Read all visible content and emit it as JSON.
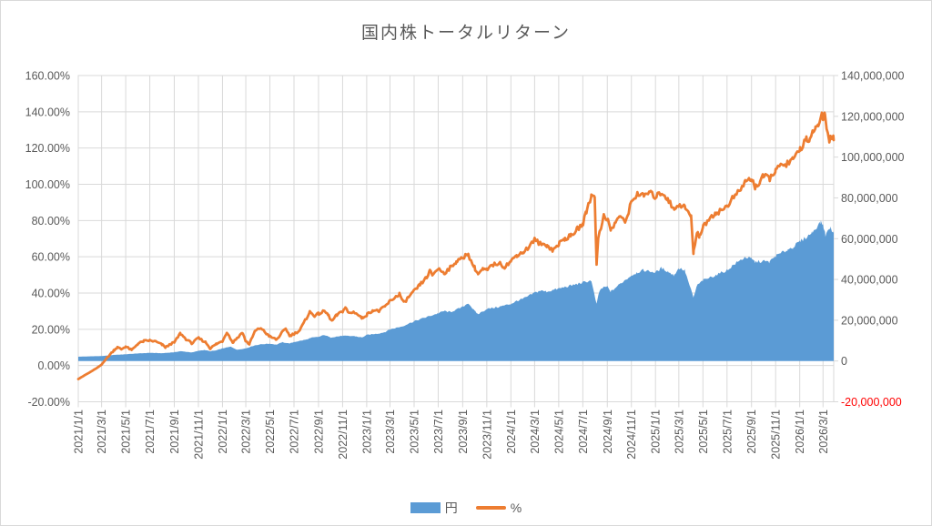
{
  "title": "国内株トータルリターン",
  "legend": {
    "items": [
      {
        "label": "円",
        "marker": "area-swatch"
      },
      {
        "label": "%",
        "marker": "line-swatch"
      }
    ]
  },
  "colors": {
    "area_series": "#5B9BD5",
    "line_series": "#ED7D31",
    "grid": "#D9D9D9",
    "axis_text": "#595959",
    "negative_axis_text": "#FF0000",
    "title_text": "#595959"
  },
  "chart_data": {
    "type": "combo",
    "title": "国内株トータルリターン",
    "grid": {
      "horizontal": true,
      "vertical": true
    },
    "legend_position": "bottom",
    "x_axis": {
      "min": "2021/1/1",
      "max": "2026/3/28",
      "tick_interval": "2 months",
      "tick_labels": [
        "2021/1/1",
        "2021/3/1",
        "2021/5/1",
        "2021/7/1",
        "2021/9/1",
        "2021/11/1",
        "2022/1/1",
        "2022/3/1",
        "2022/5/1",
        "2022/7/1",
        "2022/9/1",
        "2022/11/1",
        "2023/1/1",
        "2023/3/1",
        "2023/5/1",
        "2023/7/1",
        "2023/9/1",
        "2023/11/1",
        "2024/1/1",
        "2024/3/1",
        "2024/5/1",
        "2024/7/1",
        "2024/9/1",
        "2024/11/1",
        "2025/1/1",
        "2025/3/1",
        "2025/5/1",
        "2025/7/1",
        "2025/9/1",
        "2025/11/1",
        "2026/1/1",
        "2026/3/1"
      ]
    },
    "y_left": {
      "unit": "%",
      "min": -20,
      "max": 160,
      "step": 20,
      "tick_labels": [
        "160.00%",
        "140.00%",
        "120.00%",
        "100.00%",
        "80.00%",
        "60.00%",
        "40.00%",
        "20.00%",
        "0.00%",
        "-20.00%"
      ]
    },
    "y_right": {
      "unit": "円",
      "min": -20000000,
      "max": 140000000,
      "step": 20000000,
      "tick_labels": [
        "140,000,000",
        "120,000,000",
        "100,000,000",
        "80,000,000",
        "60,000,000",
        "40,000,000",
        "20,000,000",
        "0",
        "-20,000,000"
      ],
      "negative_label_red": true
    },
    "series": [
      {
        "name": "円",
        "type": "area",
        "axis": "right",
        "seed": 1,
        "points": [
          [
            "2021/1/1",
            2100000
          ],
          [
            "2021/2/1",
            2300000
          ],
          [
            "2021/3/1",
            2400000
          ],
          [
            "2021/4/1",
            3000000
          ],
          [
            "2021/5/1",
            3300000
          ],
          [
            "2021/6/1",
            3700000
          ],
          [
            "2021/7/1",
            4000000
          ],
          [
            "2021/8/1",
            3800000
          ],
          [
            "2021/9/1",
            4300000
          ],
          [
            "2021/9/16",
            4800000
          ],
          [
            "2021/10/1",
            4500000
          ],
          [
            "2021/10/16",
            4200000
          ],
          [
            "2021/11/1",
            5000000
          ],
          [
            "2021/11/16",
            5400000
          ],
          [
            "2021/12/1",
            4800000
          ],
          [
            "2021/12/16",
            5200000
          ],
          [
            "2022/1/1",
            6200000
          ],
          [
            "2022/1/22",
            7000000
          ],
          [
            "2022/2/7",
            5500000
          ],
          [
            "2022/3/1",
            6200000
          ],
          [
            "2022/3/24",
            7700000
          ],
          [
            "2022/4/8",
            8200000
          ],
          [
            "2022/5/1",
            8500000
          ],
          [
            "2022/5/18",
            8000000
          ],
          [
            "2022/6/1",
            9200000
          ],
          [
            "2022/6/20",
            8600000
          ],
          [
            "2022/7/1",
            9300000
          ],
          [
            "2022/8/1",
            10500000
          ],
          [
            "2022/8/16",
            11500000
          ],
          [
            "2022/9/1",
            11800000
          ],
          [
            "2022/9/16",
            12800000
          ],
          [
            "2022/10/1",
            11500000
          ],
          [
            "2022/10/16",
            12000000
          ],
          [
            "2022/11/1",
            12300000
          ],
          [
            "2022/12/1",
            12200000
          ],
          [
            "2022/12/20",
            11500000
          ],
          [
            "2023/1/1",
            12800000
          ],
          [
            "2023/2/1",
            13500000
          ],
          [
            "2023/2/16",
            14200000
          ],
          [
            "2023/3/1",
            15500000
          ],
          [
            "2023/4/1",
            17000000
          ],
          [
            "2023/5/1",
            19500000
          ],
          [
            "2023/6/1",
            21500000
          ],
          [
            "2023/7/1",
            23400000
          ],
          [
            "2023/7/16",
            24500000
          ],
          [
            "2023/8/1",
            24000000
          ],
          [
            "2023/9/1",
            26500000
          ],
          [
            "2023/9/15",
            28500000
          ],
          [
            "2023/10/1",
            24500000
          ],
          [
            "2023/10/10",
            23000000
          ],
          [
            "2023/11/1",
            25500000
          ],
          [
            "2023/12/1",
            26500000
          ],
          [
            "2024/1/1",
            28000000
          ],
          [
            "2024/1/16",
            29500000
          ],
          [
            "2024/2/1",
            30500000
          ],
          [
            "2024/3/1",
            33500000
          ],
          [
            "2024/3/16",
            34500000
          ],
          [
            "2024/4/1",
            34000000
          ],
          [
            "2024/5/1",
            35500000
          ],
          [
            "2024/6/1",
            37000000
          ],
          [
            "2024/7/1",
            38500000
          ],
          [
            "2024/7/22",
            39500000
          ],
          [
            "2024/8/5",
            27800000
          ],
          [
            "2024/8/10",
            33000000
          ],
          [
            "2024/8/16",
            35500000
          ],
          [
            "2024/9/1",
            36500000
          ],
          [
            "2024/9/10",
            34000000
          ],
          [
            "2024/10/1",
            37500000
          ],
          [
            "2024/11/1",
            42000000
          ],
          [
            "2024/11/16",
            43500000
          ],
          [
            "2024/12/1",
            44500000
          ],
          [
            "2025/1/1",
            43500000
          ],
          [
            "2025/1/16",
            45500000
          ],
          [
            "2025/2/1",
            44000000
          ],
          [
            "2025/2/16",
            42000000
          ],
          [
            "2025/3/1",
            45500000
          ],
          [
            "2025/3/16",
            44500000
          ],
          [
            "2025/4/7",
            31000000
          ],
          [
            "2025/4/16",
            37000000
          ],
          [
            "2025/5/1",
            39500000
          ],
          [
            "2025/6/1",
            42000000
          ],
          [
            "2025/7/1",
            44500000
          ],
          [
            "2025/7/16",
            47000000
          ],
          [
            "2025/8/1",
            49000000
          ],
          [
            "2025/8/16",
            51000000
          ],
          [
            "2025/9/1",
            50000000
          ],
          [
            "2025/9/10",
            48500000
          ],
          [
            "2025/10/1",
            49000000
          ],
          [
            "2025/10/16",
            48500000
          ],
          [
            "2025/11/1",
            51500000
          ],
          [
            "2025/12/1",
            54500000
          ],
          [
            "2025/12/16",
            56000000
          ],
          [
            "2026/1/1",
            58500000
          ],
          [
            "2026/1/16",
            60500000
          ],
          [
            "2026/2/1",
            63000000
          ],
          [
            "2026/2/22",
            68000000
          ],
          [
            "2026/3/1",
            67000000
          ],
          [
            "2026/3/7",
            61800000
          ],
          [
            "2026/3/13",
            63500000
          ],
          [
            "2026/3/19",
            65500000
          ],
          [
            "2026/3/28",
            63000000
          ]
        ]
      },
      {
        "name": "%",
        "type": "line",
        "axis": "left",
        "seed": 2,
        "points": [
          [
            "2021/1/1",
            -7.5
          ],
          [
            "2021/1/16",
            -5.5
          ],
          [
            "2021/2/1",
            -3.5
          ],
          [
            "2021/2/16",
            -1.5
          ],
          [
            "2021/3/1",
            0.5
          ],
          [
            "2021/3/16",
            4.5
          ],
          [
            "2021/4/1",
            8.5
          ],
          [
            "2021/4/10",
            10
          ],
          [
            "2021/4/20",
            9
          ],
          [
            "2021/5/1",
            10.5
          ],
          [
            "2021/5/16",
            8.5
          ],
          [
            "2021/6/1",
            12
          ],
          [
            "2021/6/16",
            13.5
          ],
          [
            "2021/7/1",
            13.8
          ],
          [
            "2021/7/16",
            13.2
          ],
          [
            "2021/8/1",
            11.5
          ],
          [
            "2021/8/10",
            10
          ],
          [
            "2021/8/24",
            12
          ],
          [
            "2021/9/1",
            12.7
          ],
          [
            "2021/9/16",
            17.7
          ],
          [
            "2021/10/1",
            14.5
          ],
          [
            "2021/10/16",
            12.2
          ],
          [
            "2021/11/1",
            15.2
          ],
          [
            "2021/11/20",
            12.7
          ],
          [
            "2021/12/1",
            9.5
          ],
          [
            "2021/12/16",
            11.8
          ],
          [
            "2022/1/1",
            13.5
          ],
          [
            "2022/1/12",
            18.5
          ],
          [
            "2022/1/27",
            12.7
          ],
          [
            "2022/2/7",
            15.2
          ],
          [
            "2022/2/20",
            18.2
          ],
          [
            "2022/3/1",
            13.5
          ],
          [
            "2022/3/10",
            11.8
          ],
          [
            "2022/3/24",
            18.9
          ],
          [
            "2022/4/8",
            20.8
          ],
          [
            "2022/4/20",
            18
          ],
          [
            "2022/5/1",
            16
          ],
          [
            "2022/5/18",
            14.3
          ],
          [
            "2022/6/1",
            18.2
          ],
          [
            "2022/6/10",
            20.5
          ],
          [
            "2022/6/20",
            16.5
          ],
          [
            "2022/7/1",
            17.5
          ],
          [
            "2022/7/16",
            19.5
          ],
          [
            "2022/8/1",
            26
          ],
          [
            "2022/8/10",
            29.5
          ],
          [
            "2022/8/22",
            27.5
          ],
          [
            "2022/9/1",
            28.5
          ],
          [
            "2022/9/16",
            30
          ],
          [
            "2022/9/25",
            28
          ],
          [
            "2022/10/5",
            24.5
          ],
          [
            "2022/10/16",
            27.5
          ],
          [
            "2022/11/1",
            30
          ],
          [
            "2022/11/8",
            31.9
          ],
          [
            "2022/11/16",
            29
          ],
          [
            "2022/12/1",
            29.5
          ],
          [
            "2022/12/20",
            26.2
          ],
          [
            "2023/1/1",
            28
          ],
          [
            "2023/1/16",
            30.5
          ],
          [
            "2023/2/1",
            30
          ],
          [
            "2023/2/16",
            32.5
          ],
          [
            "2023/3/1",
            35.5
          ],
          [
            "2023/3/16",
            38
          ],
          [
            "2023/3/25",
            39.5
          ],
          [
            "2023/4/5",
            34.5
          ],
          [
            "2023/4/16",
            37.5
          ],
          [
            "2023/5/1",
            41
          ],
          [
            "2023/5/16",
            44.5
          ],
          [
            "2023/6/1",
            48.5
          ],
          [
            "2023/6/10",
            52
          ],
          [
            "2023/6/16",
            50
          ],
          [
            "2023/7/1",
            53.5
          ],
          [
            "2023/7/16",
            51
          ],
          [
            "2023/8/1",
            54
          ],
          [
            "2023/8/16",
            57.5
          ],
          [
            "2023/9/1",
            59
          ],
          [
            "2023/9/12",
            62
          ],
          [
            "2023/10/1",
            54
          ],
          [
            "2023/10/10",
            50.5
          ],
          [
            "2023/10/22",
            53
          ],
          [
            "2023/11/1",
            52.5
          ],
          [
            "2023/11/16",
            55.5
          ],
          [
            "2023/12/1",
            56.5
          ],
          [
            "2023/12/16",
            54.5
          ],
          [
            "2024/1/1",
            57.5
          ],
          [
            "2024/1/16",
            61
          ],
          [
            "2024/2/1",
            62.5
          ],
          [
            "2024/2/16",
            65.5
          ],
          [
            "2024/3/1",
            69.5
          ],
          [
            "2024/3/16",
            67
          ],
          [
            "2024/4/1",
            66.5
          ],
          [
            "2024/4/16",
            63.5
          ],
          [
            "2024/5/1",
            67
          ],
          [
            "2024/5/16",
            70
          ],
          [
            "2024/6/1",
            71.5
          ],
          [
            "2024/6/16",
            75
          ],
          [
            "2024/7/1",
            78
          ],
          [
            "2024/7/10",
            85
          ],
          [
            "2024/7/22",
            93.5
          ],
          [
            "2024/7/31",
            94
          ],
          [
            "2024/8/5",
            56.5
          ],
          [
            "2024/8/9",
            70
          ],
          [
            "2024/8/16",
            76
          ],
          [
            "2024/8/23",
            83
          ],
          [
            "2024/9/1",
            81
          ],
          [
            "2024/9/10",
            74.5
          ],
          [
            "2024/9/22",
            79
          ],
          [
            "2024/10/1",
            82.5
          ],
          [
            "2024/10/16",
            79
          ],
          [
            "2024/11/1",
            90
          ],
          [
            "2024/11/16",
            95
          ],
          [
            "2024/12/1",
            93.5
          ],
          [
            "2024/12/16",
            95.5
          ],
          [
            "2025/1/1",
            93
          ],
          [
            "2025/1/16",
            95.5
          ],
          [
            "2025/2/1",
            92
          ],
          [
            "2025/2/16",
            86
          ],
          [
            "2025/3/1",
            89
          ],
          [
            "2025/3/16",
            87.5
          ],
          [
            "2025/4/1",
            82
          ],
          [
            "2025/4/7",
            62
          ],
          [
            "2025/4/16",
            74
          ],
          [
            "2025/4/22",
            71.5
          ],
          [
            "2025/5/1",
            76
          ],
          [
            "2025/5/16",
            81
          ],
          [
            "2025/6/1",
            84
          ],
          [
            "2025/6/16",
            85.5
          ],
          [
            "2025/7/1",
            88
          ],
          [
            "2025/7/16",
            92.5
          ],
          [
            "2025/8/1",
            96
          ],
          [
            "2025/8/16",
            101.5
          ],
          [
            "2025/9/1",
            103
          ],
          [
            "2025/9/10",
            98.5
          ],
          [
            "2025/9/22",
            101
          ],
          [
            "2025/10/1",
            104.5
          ],
          [
            "2025/10/16",
            103
          ],
          [
            "2025/11/1",
            108
          ],
          [
            "2025/11/21",
            110.7
          ],
          [
            "2025/12/1",
            111.5
          ],
          [
            "2025/12/14",
            113.2
          ],
          [
            "2026/1/1",
            119
          ],
          [
            "2026/1/18",
            125.8
          ],
          [
            "2026/1/25",
            122.4
          ],
          [
            "2026/2/3",
            128.3
          ],
          [
            "2026/2/10",
            132.5
          ],
          [
            "2026/2/17",
            130.8
          ],
          [
            "2026/2/26",
            138.4
          ],
          [
            "2026/3/1",
            136.7
          ],
          [
            "2026/3/5",
            139.2
          ],
          [
            "2026/3/10",
            130.8
          ],
          [
            "2026/3/17",
            125
          ],
          [
            "2026/3/24",
            126.6
          ],
          [
            "2026/3/28",
            125.8
          ]
        ]
      }
    ],
    "render_hints": {
      "daily_noise_pct": 0.013,
      "daily_noise_yen_frac": 0.016
    }
  }
}
